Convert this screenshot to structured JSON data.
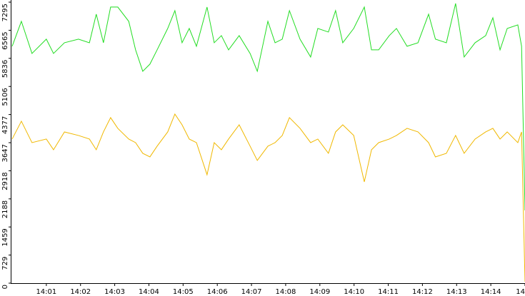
{
  "chart_data": {
    "type": "line",
    "x": [
      0,
      0.27,
      0.58,
      1.0,
      1.21,
      1.53,
      1.94,
      2.26,
      2.46,
      2.67,
      2.88,
      3.09,
      3.41,
      3.61,
      3.82,
      4.03,
      4.24,
      4.55,
      4.76,
      4.97,
      5.18,
      5.39,
      5.7,
      5.91,
      6.12,
      6.33,
      6.64,
      6.96,
      7.17,
      7.48,
      7.69,
      7.9,
      8.11,
      8.42,
      8.73,
      8.94,
      9.25,
      9.46,
      9.67,
      9.99,
      10.3,
      10.51,
      10.72,
      11.03,
      11.24,
      11.55,
      11.87,
      12.18,
      12.38,
      12.7,
      12.97,
      13.22,
      13.54,
      13.85,
      14.06,
      14.27,
      14.48,
      14.79,
      14.9,
      15.0
    ],
    "series": [
      {
        "color": "#22dd22",
        "values": [
          6149,
          6797,
          5963,
          6334,
          5963,
          6241,
          6334,
          6241,
          6982,
          6241,
          7167,
          7167,
          6797,
          6056,
          5500,
          5686,
          6056,
          6612,
          7075,
          6241,
          6612,
          6149,
          7167,
          6241,
          6426,
          6056,
          6426,
          5963,
          5500,
          6797,
          6241,
          6334,
          7075,
          6334,
          5871,
          6612,
          6519,
          7075,
          6241,
          6612,
          7167,
          6056,
          6056,
          6426,
          6612,
          6149,
          6241,
          6982,
          6334,
          6241,
          7260,
          5871,
          6241,
          6426,
          6889,
          6056,
          6612,
          6704,
          6149,
          1889
        ]
      },
      {
        "color": "#f0b800",
        "values": [
          3741,
          4204,
          3648,
          3741,
          3463,
          3926,
          3834,
          3741,
          3463,
          3926,
          4297,
          4019,
          3741,
          3648,
          3371,
          3278,
          3556,
          3926,
          4389,
          4111,
          3741,
          3648,
          2815,
          3648,
          3463,
          3741,
          4111,
          3556,
          3186,
          3556,
          3648,
          3834,
          4297,
          4019,
          3648,
          3741,
          3371,
          3926,
          4111,
          3834,
          2630,
          3463,
          3648,
          3741,
          3834,
          4019,
          3926,
          3648,
          3278,
          3371,
          3834,
          3371,
          3741,
          3926,
          4019,
          3741,
          3926,
          3648,
          3926,
          37
        ]
      }
    ],
    "xlim": [
      0,
      15
    ],
    "xticks": [
      {
        "value": 1,
        "label": "14:01"
      },
      {
        "value": 2,
        "label": "14:02"
      },
      {
        "value": 3,
        "label": "14:03"
      },
      {
        "value": 4,
        "label": "14:04"
      },
      {
        "value": 5,
        "label": "14:05"
      },
      {
        "value": 6,
        "label": "14:06"
      },
      {
        "value": 7,
        "label": "14:07"
      },
      {
        "value": 8,
        "label": "14:08"
      },
      {
        "value": 9,
        "label": "14:09"
      },
      {
        "value": 10,
        "label": "14:10"
      },
      {
        "value": 11,
        "label": "14:11"
      },
      {
        "value": 12,
        "label": "14:12"
      },
      {
        "value": 13,
        "label": "14:13"
      },
      {
        "value": 14,
        "label": "14:14"
      },
      {
        "value": 15,
        "label": "14"
      }
    ],
    "ylim": [
      0,
      7295
    ],
    "yticks": [
      0,
      729,
      1459,
      2188,
      2918,
      3647,
      4377,
      5106,
      5836,
      6565,
      7295
    ],
    "grid": false
  }
}
